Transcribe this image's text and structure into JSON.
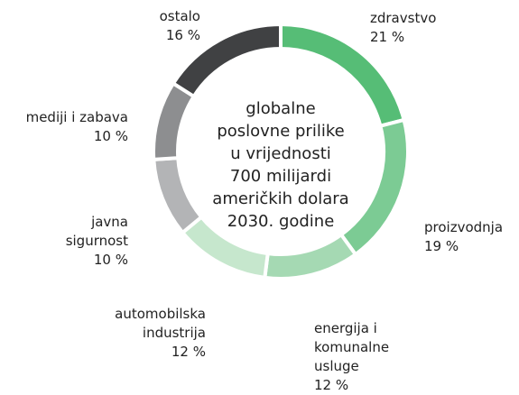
{
  "chart_data": {
    "type": "donut",
    "center_text": [
      "globalne",
      "poslovne prilike",
      "u vrijednosti",
      "700 milijardi",
      "američkih dolara",
      "2030. godine"
    ],
    "categories": [
      "zdravstvo",
      "proizvodnja",
      "energija i komunalne usluge",
      "automobilska industrija",
      "javna sigurnost",
      "mediji i zabava",
      "ostalo"
    ],
    "values": [
      21,
      19,
      12,
      12,
      10,
      10,
      16
    ],
    "value_labels": [
      "21 %",
      "19 %",
      "12 %",
      "12 %",
      "10 %",
      "10 %",
      "16 %"
    ],
    "colors": [
      "#56bd76",
      "#7ccb94",
      "#a5d9b3",
      "#c6e7cd",
      "#b3b4b6",
      "#8d8e90",
      "#404143"
    ]
  }
}
